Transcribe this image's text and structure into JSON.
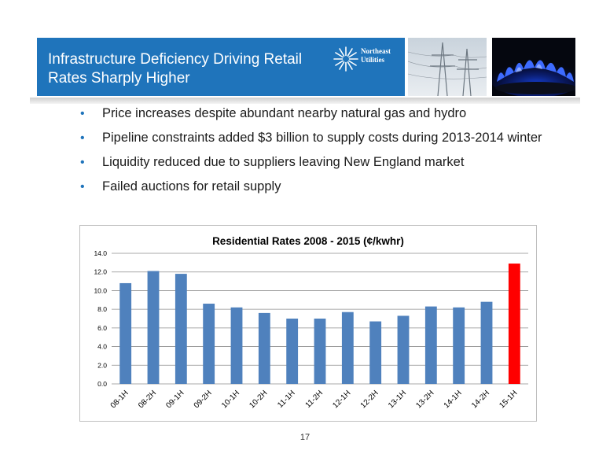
{
  "header": {
    "title_line1": "Infrastructure Deficiency Driving Retail",
    "title_line2": "Rates Sharply Higher",
    "logo_line1": "Northeast",
    "logo_line2": "Utilities",
    "logo_icon": "sunburst-logo-icon",
    "photos": [
      "transmission-towers-photo",
      "gas-flame-photo"
    ],
    "bar_color": "#1f74bb"
  },
  "bullets": [
    "Price increases despite abundant nearby natural gas and hydro",
    "Pipeline constraints added $3 billion to supply costs during 2013-2014 winter",
    "Liquidity reduced due to suppliers leaving New England market",
    "Failed auctions for retail supply"
  ],
  "chart_data": {
    "type": "bar",
    "title": "Residential Rates  2008 - 2015 (¢/kwhr)",
    "categories": [
      "08-1H",
      "08-2H",
      "09-1H",
      "09-2H",
      "10-1H",
      "10-2H",
      "11-1H",
      "11-2H",
      "12-1H",
      "12-2H",
      "13-1H",
      "13-2H",
      "14-1H",
      "14-2H",
      "15-1H"
    ],
    "values": [
      10.8,
      12.1,
      11.8,
      8.6,
      8.2,
      7.6,
      7.0,
      7.0,
      7.7,
      6.7,
      7.3,
      8.3,
      8.2,
      8.8,
      12.9
    ],
    "y_ticks": [
      "0.0",
      "2.0",
      "4.0",
      "6.0",
      "8.0",
      "10.0",
      "12.0",
      "14.0"
    ],
    "ylim": [
      0,
      14
    ],
    "grid": true,
    "bar_color": "#4f81bd",
    "highlight_index": 14,
    "highlight_color": "#ff0000"
  },
  "footer": {
    "page_number": "17"
  }
}
